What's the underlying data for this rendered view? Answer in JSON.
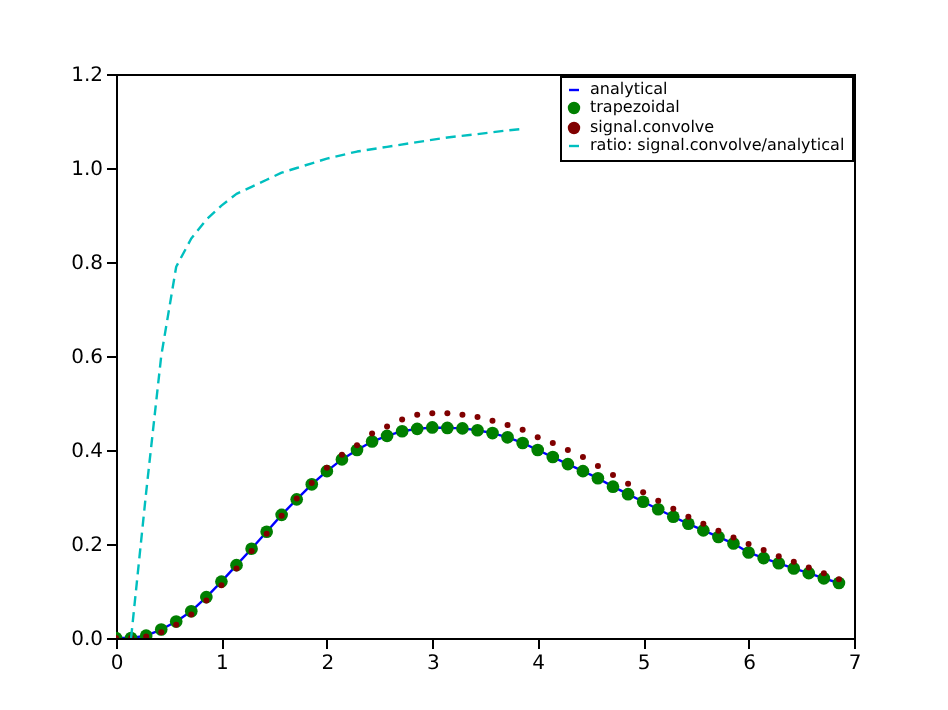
{
  "chart_data": {
    "type": "line",
    "x": [
      0,
      0.143,
      0.286,
      0.429,
      0.571,
      0.714,
      0.857,
      1.0,
      1.143,
      1.286,
      1.429,
      1.571,
      1.714,
      1.857,
      2.0,
      2.143,
      2.286,
      2.429,
      2.571,
      2.714,
      2.857,
      3.0,
      3.143,
      3.286,
      3.429,
      3.571,
      3.714,
      3.857,
      4.0,
      4.143,
      4.286,
      4.429,
      4.571,
      4.714,
      4.857,
      5.0,
      5.143,
      5.286,
      5.429,
      5.571,
      5.714,
      5.857,
      6.0,
      6.143,
      6.286,
      6.429,
      6.571,
      6.714,
      6.857
    ],
    "series": [
      {
        "name": "analytical",
        "color": "#0000ff",
        "line_style": "solid",
        "values": [
          0,
          0,
          0.005,
          0.018,
          0.035,
          0.057,
          0.087,
          0.12,
          0.155,
          0.19,
          0.226,
          0.262,
          0.295,
          0.327,
          0.355,
          0.38,
          0.4,
          0.418,
          0.43,
          0.44,
          0.445,
          0.448,
          0.447,
          0.446,
          0.442,
          0.436,
          0.427,
          0.415,
          0.4,
          0.385,
          0.37,
          0.355,
          0.34,
          0.322,
          0.306,
          0.29,
          0.274,
          0.258,
          0.243,
          0.229,
          0.215,
          0.201,
          0.182,
          0.17,
          0.159,
          0.148,
          0.138,
          0.127,
          0.117
        ]
      },
      {
        "name": "trapezoidal",
        "type": "scatter",
        "color": "#007f00",
        "marker": "circle",
        "values": [
          0,
          0,
          0.005,
          0.018,
          0.035,
          0.057,
          0.087,
          0.12,
          0.155,
          0.19,
          0.226,
          0.262,
          0.295,
          0.327,
          0.355,
          0.38,
          0.4,
          0.418,
          0.43,
          0.44,
          0.445,
          0.448,
          0.447,
          0.446,
          0.442,
          0.436,
          0.427,
          0.415,
          0.4,
          0.385,
          0.37,
          0.355,
          0.34,
          0.322,
          0.306,
          0.29,
          0.274,
          0.258,
          0.243,
          0.229,
          0.215,
          0.201,
          0.182,
          0.17,
          0.159,
          0.148,
          0.138,
          0.127,
          0.117
        ]
      },
      {
        "name": "signal.convolve",
        "type": "scatter",
        "color": "#800000",
        "marker": "circle",
        "values": [
          0,
          0,
          0.003,
          0.012,
          0.028,
          0.05,
          0.08,
          0.112,
          0.148,
          0.185,
          0.222,
          0.26,
          0.297,
          0.33,
          0.362,
          0.39,
          0.41,
          0.435,
          0.45,
          0.465,
          0.475,
          0.478,
          0.478,
          0.475,
          0.47,
          0.462,
          0.453,
          0.443,
          0.427,
          0.415,
          0.4,
          0.385,
          0.366,
          0.347,
          0.328,
          0.31,
          0.292,
          0.275,
          0.258,
          0.243,
          0.228,
          0.214,
          0.2,
          0.187,
          0.174,
          0.162,
          0.15,
          0.138,
          0.125
        ]
      },
      {
        "name": "ratio: signal.convolve/analytical",
        "color": "#00bfbf",
        "line_style": "dashed",
        "x": [
          0.143,
          0.286,
          0.429,
          0.571,
          0.714,
          0.857,
          1.0,
          1.143,
          1.286,
          1.429,
          1.571,
          1.714,
          1.857,
          2.0,
          2.286,
          2.571,
          2.857,
          3.143,
          3.429,
          3.714,
          3.857
        ],
        "values": [
          0,
          0.31,
          0.6,
          0.79,
          0.85,
          0.89,
          0.92,
          0.945,
          0.96,
          0.975,
          0.99,
          1.0,
          1.01,
          1.02,
          1.035,
          1.045,
          1.055,
          1.065,
          1.072,
          1.08,
          1.083
        ]
      }
    ],
    "xlim": [
      0,
      7
    ],
    "xticks": [
      0,
      1,
      2,
      3,
      4,
      5,
      6,
      7
    ],
    "ylim": [
      0,
      1.2
    ],
    "yticks": [
      {
        "value": 0,
        "label": "0.0"
      },
      0.2,
      0.4,
      0.6,
      0.8,
      {
        "value": 1,
        "label": "1.0"
      },
      1.2
    ],
    "legend": "top right"
  }
}
